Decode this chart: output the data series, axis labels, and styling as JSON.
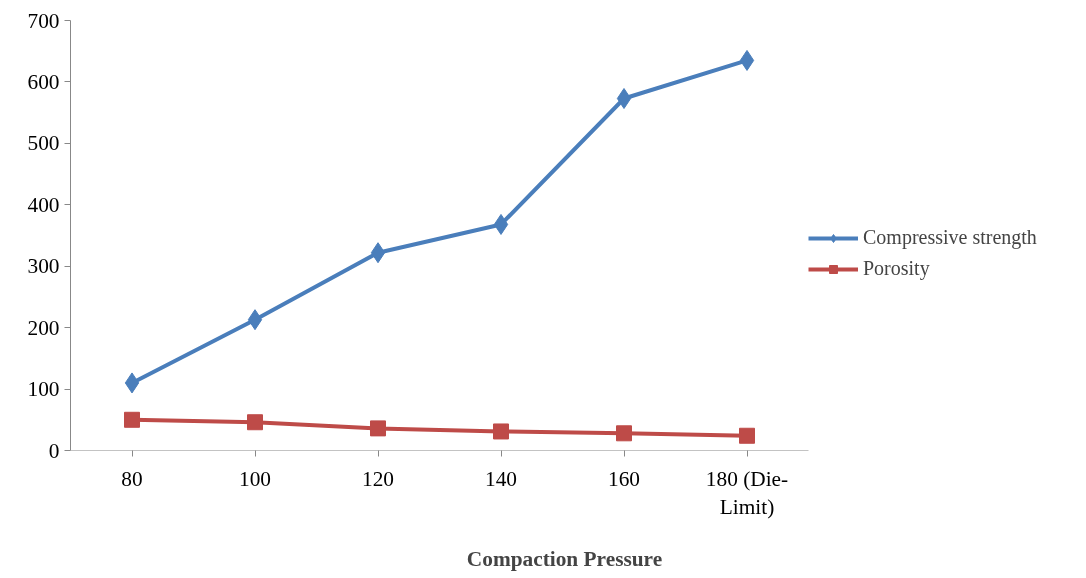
{
  "chart_data": {
    "type": "line",
    "xlabel": "Compaction Pressure",
    "categories": [
      "80",
      "100",
      "120",
      "140",
      "160",
      "180 (Die-Limit)"
    ],
    "series": [
      {
        "name": "Compressive strength",
        "color": "#4a7ebb",
        "marker": "diamond",
        "values": [
          110,
          213,
          322,
          368,
          573,
          635
        ]
      },
      {
        "name": "Porosity",
        "color": "#be4b48",
        "marker": "square",
        "values": [
          50,
          46,
          36,
          31,
          28,
          24
        ]
      }
    ],
    "ylim": [
      0,
      700
    ],
    "yticks": [
      0,
      100,
      200,
      300,
      400,
      500,
      600,
      700
    ],
    "grid": false,
    "legend": "right",
    "line_style": "solid"
  }
}
